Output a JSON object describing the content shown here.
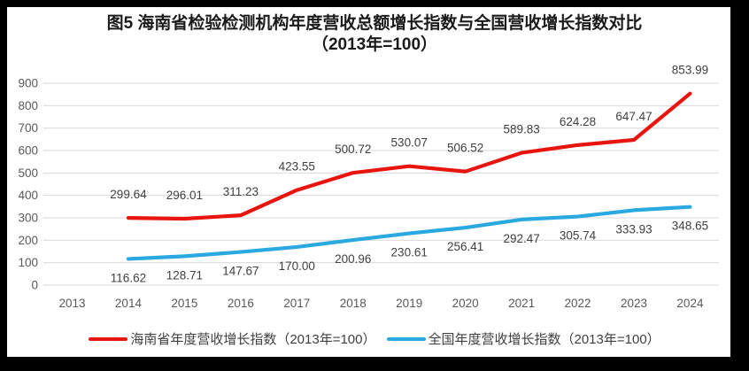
{
  "title": {
    "line1": "图5  海南省检验检测机构年度营收总额增长指数与全国营收增长指数对比",
    "line2": "（2013年=100）"
  },
  "chart_data": {
    "type": "line",
    "categories": [
      "2013",
      "2014",
      "2015",
      "2016",
      "2017",
      "2018",
      "2019",
      "2020",
      "2021",
      "2022",
      "2023",
      "2024"
    ],
    "series": [
      {
        "name": "海南省年度营收增长指数（2013年=100）",
        "color": "#e8150f",
        "values": [
          null,
          299.64,
          296.01,
          311.23,
          423.55,
          500.72,
          530.07,
          506.52,
          589.83,
          624.28,
          647.47,
          853.99
        ]
      },
      {
        "name": "全国年度营收增长指数（2013年=100）",
        "color": "#2aa8e0",
        "values": [
          null,
          116.62,
          128.71,
          147.67,
          170.0,
          200.96,
          230.61,
          256.41,
          292.47,
          305.74,
          333.93,
          348.65
        ]
      }
    ],
    "ylim": [
      0,
      900
    ],
    "ytick_step": 100,
    "yticks": [
      0,
      100,
      200,
      300,
      400,
      500,
      600,
      700,
      800,
      900
    ],
    "grid": true,
    "legend_position": "bottom",
    "value_decimals": 2
  },
  "colors": {
    "frame": "#000000",
    "background": "#ffffff",
    "gridline": "#d9d9d9",
    "axis_text": "#595959",
    "data_label": "#404040",
    "legend_text": "#3f3f3f",
    "title_text": "#1a1a1a"
  }
}
